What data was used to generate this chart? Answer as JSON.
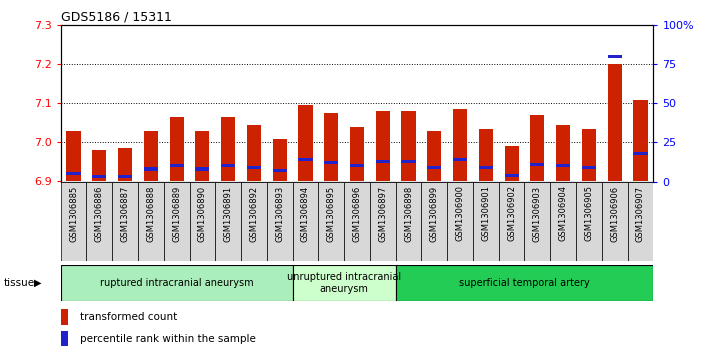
{
  "title": "GDS5186 / 15311",
  "samples": [
    "GSM1306885",
    "GSM1306886",
    "GSM1306887",
    "GSM1306888",
    "GSM1306889",
    "GSM1306890",
    "GSM1306891",
    "GSM1306892",
    "GSM1306893",
    "GSM1306894",
    "GSM1306895",
    "GSM1306896",
    "GSM1306897",
    "GSM1306898",
    "GSM1306899",
    "GSM1306900",
    "GSM1306901",
    "GSM1306902",
    "GSM1306903",
    "GSM1306904",
    "GSM1306905",
    "GSM1306906",
    "GSM1306907"
  ],
  "transformed_count": [
    7.03,
    6.98,
    6.985,
    7.03,
    7.065,
    7.03,
    7.065,
    7.045,
    7.01,
    7.095,
    7.075,
    7.04,
    7.08,
    7.08,
    7.03,
    7.085,
    7.035,
    6.99,
    7.07,
    7.045,
    7.035,
    7.2,
    7.11
  ],
  "percentile_rank": [
    5,
    3,
    3,
    8,
    10,
    8,
    10,
    9,
    7,
    14,
    12,
    10,
    13,
    13,
    9,
    14,
    9,
    4,
    11,
    10,
    9,
    80,
    18
  ],
  "ylim_left": [
    6.9,
    7.3
  ],
  "ylim_right": [
    0,
    100
  ],
  "yticks_left": [
    6.9,
    7.0,
    7.1,
    7.2,
    7.3
  ],
  "yticks_right": [
    0,
    25,
    50,
    75,
    100
  ],
  "ytick_labels_right": [
    "0",
    "25",
    "50",
    "75",
    "100%"
  ],
  "bar_color": "#CC2200",
  "percentile_color": "#2222CC",
  "tissue_groups": [
    {
      "label": "ruptured intracranial aneurysm",
      "start": 0,
      "end": 9,
      "color": "#AAEEBB"
    },
    {
      "label": "unruptured intracranial\naneurysm",
      "start": 9,
      "end": 13,
      "color": "#CCFFCC"
    },
    {
      "label": "superficial temporal artery",
      "start": 13,
      "end": 23,
      "color": "#22CC55"
    }
  ],
  "tissue_label": "tissue",
  "legend_red": "transformed count",
  "legend_blue": "percentile rank within the sample",
  "bar_width": 0.55,
  "plot_bg": "#FFFFFF",
  "fig_bg": "#FFFFFF",
  "cell_bg": "#D8D8D8"
}
